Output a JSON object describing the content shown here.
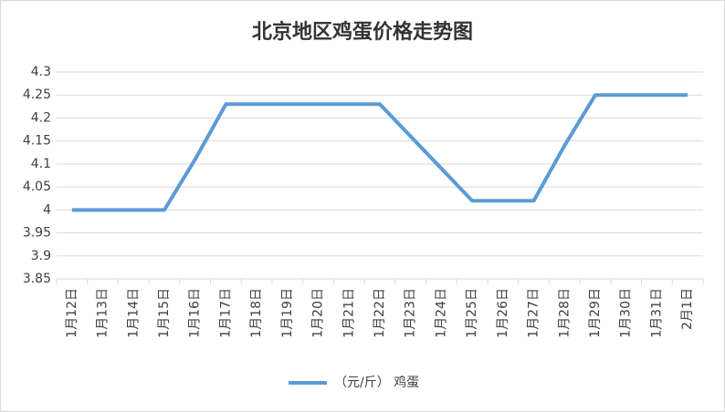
{
  "chart_data": {
    "type": "line",
    "title": "北京地区鸡蛋价格走势图",
    "categories": [
      "1月12日",
      "1月13日",
      "1月14日",
      "1月15日",
      "1月16日",
      "1月17日",
      "1月18日",
      "1月19日",
      "1月20日",
      "1月21日",
      "1月22日",
      "1月23日",
      "1月24日",
      "1月25日",
      "1月26日",
      "1月27日",
      "1月28日",
      "1月29日",
      "1月30日",
      "1月31日",
      "2月1日"
    ],
    "series": [
      {
        "name": "（元/斤） 鸡蛋",
        "color": "#5b9bd5",
        "values": [
          4.0,
          4.0,
          4.0,
          4.0,
          4.11,
          4.23,
          4.23,
          4.23,
          4.23,
          4.23,
          4.23,
          4.16,
          4.09,
          4.02,
          4.02,
          4.02,
          4.14,
          4.25,
          4.25,
          4.25,
          4.25
        ]
      }
    ],
    "ylim": [
      3.85,
      4.3
    ],
    "yticks": [
      3.85,
      3.9,
      3.95,
      4,
      4.05,
      4.1,
      4.15,
      4.2,
      4.25,
      4.3
    ],
    "grid": true,
    "legend": "bottom"
  }
}
